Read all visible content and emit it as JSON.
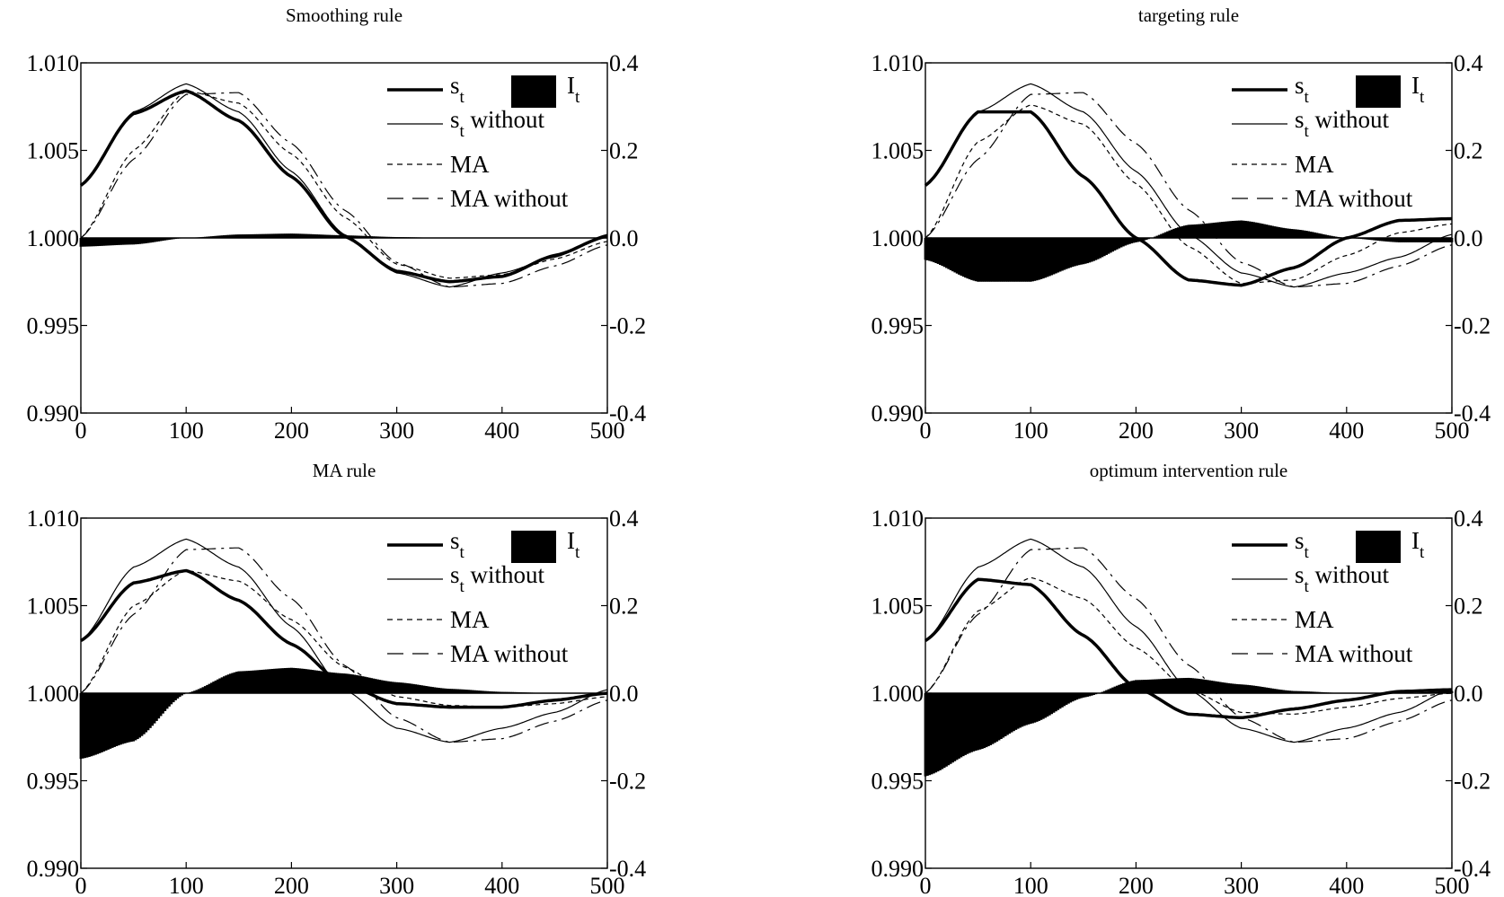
{
  "chart_data": [
    {
      "type": "line",
      "title": "Smoothing rule",
      "xlim": [
        0,
        500
      ],
      "ylim": [
        0.99,
        1.01
      ],
      "y2lim": [
        -0.4,
        0.4
      ],
      "x_ticks": [
        "0",
        "100",
        "200",
        "300",
        "400",
        "500"
      ],
      "y_ticks": [
        "1.010",
        "1.005",
        "1.000",
        "0.995",
        "0.990"
      ],
      "y2_ticks": [
        "0.4",
        "0.2",
        "0.0",
        "-0.2",
        "-0.4"
      ],
      "legend": {
        "s": "s",
        "s_sub": "t",
        "s_without": " without",
        "ma": "MA",
        "ma_without": "MA without",
        "i": "I",
        "i_sub": "t"
      },
      "legend_position": "top-right",
      "x": [
        0,
        50,
        100,
        150,
        200,
        250,
        300,
        350,
        400,
        450,
        500
      ],
      "series": [
        {
          "key": "s_t",
          "axis": "left",
          "style": "thick",
          "values": [
            1.003,
            1.0071,
            1.0084,
            1.0067,
            1.0035,
            1.0001,
            0.9981,
            0.9975,
            0.9978,
            0.999,
            1.0001
          ]
        },
        {
          "key": "s_t_without",
          "axis": "left",
          "style": "thin",
          "values": [
            1.003,
            1.0072,
            1.0088,
            1.0072,
            1.0038,
            1.0002,
            0.998,
            0.9972,
            0.998,
            0.9989,
            1.0002
          ]
        },
        {
          "key": "MA",
          "axis": "left",
          "style": "dashed",
          "values": [
            1.0,
            1.005,
            1.0084,
            1.0077,
            1.0048,
            1.0012,
            0.9985,
            0.9977,
            0.9979,
            0.9988,
            0.9998
          ]
        },
        {
          "key": "MA_without",
          "axis": "left",
          "style": "longdash",
          "values": [
            1.0,
            1.0045,
            1.0082,
            1.0083,
            1.0054,
            1.0016,
            0.9986,
            0.9972,
            0.9974,
            0.9984,
            0.9996
          ]
        },
        {
          "key": "I_t",
          "axis": "right",
          "style": "fill",
          "values": [
            -0.02,
            -0.015,
            0.0,
            0.008,
            0.01,
            0.006,
            0.002,
            0.0,
            0.0,
            0.0,
            0.0
          ]
        }
      ]
    },
    {
      "type": "line",
      "title": "targeting rule",
      "xlim": [
        0,
        500
      ],
      "ylim": [
        0.99,
        1.01
      ],
      "y2lim": [
        -0.4,
        0.4
      ],
      "x_ticks": [
        "0",
        "100",
        "200",
        "300",
        "400",
        "500"
      ],
      "y_ticks": [
        "1.010",
        "1.005",
        "1.000",
        "0.995",
        "0.990"
      ],
      "y2_ticks": [
        "0.4",
        "0.2",
        "0.0",
        "-0.2",
        "-0.4"
      ],
      "legend": {
        "s": "s",
        "s_sub": "t",
        "s_without": " without",
        "ma": "MA",
        "ma_without": "MA without",
        "i": "I",
        "i_sub": "t"
      },
      "legend_position": "top-right",
      "x": [
        0,
        50,
        100,
        150,
        200,
        250,
        300,
        350,
        400,
        450,
        500
      ],
      "series": [
        {
          "key": "s_t",
          "axis": "left",
          "style": "thick",
          "values": [
            1.003,
            1.0072,
            1.0072,
            1.0035,
            1.0,
            0.9976,
            0.9973,
            0.9983,
            1.0,
            1.001,
            1.0011
          ]
        },
        {
          "key": "s_t_without",
          "axis": "left",
          "style": "thin",
          "values": [
            1.003,
            1.0072,
            1.0088,
            1.0072,
            1.0038,
            1.0002,
            0.998,
            0.9972,
            0.998,
            0.9989,
            1.0002
          ]
        },
        {
          "key": "MA",
          "axis": "left",
          "style": "dashed",
          "values": [
            1.0,
            1.0055,
            1.0076,
            1.0065,
            1.0031,
            0.9995,
            0.9974,
            0.9976,
            0.999,
            1.0003,
            1.0008
          ]
        },
        {
          "key": "MA_without",
          "axis": "left",
          "style": "longdash",
          "values": [
            1.0,
            1.0045,
            1.0082,
            1.0083,
            1.0054,
            1.0016,
            0.9986,
            0.9972,
            0.9974,
            0.9984,
            0.9996
          ]
        },
        {
          "key": "I_t",
          "axis": "right",
          "style": "fill",
          "values": [
            -0.05,
            -0.1,
            -0.1,
            -0.06,
            -0.01,
            0.03,
            0.04,
            0.02,
            0.0,
            -0.01,
            -0.01
          ]
        }
      ]
    },
    {
      "type": "line",
      "title": "MA rule",
      "xlim": [
        0,
        500
      ],
      "ylim": [
        0.99,
        1.01
      ],
      "y2lim": [
        -0.4,
        0.4
      ],
      "x_ticks": [
        "0",
        "100",
        "200",
        "300",
        "400",
        "500"
      ],
      "y_ticks": [
        "1.010",
        "1.005",
        "1.000",
        "0.995",
        "0.990"
      ],
      "y2_ticks": [
        "0.4",
        "0.2",
        "0.0",
        "-0.2",
        "-0.4"
      ],
      "legend": {
        "s": "s",
        "s_sub": "t",
        "s_without": " without",
        "ma": "MA",
        "ma_without": "MA without",
        "i": "I",
        "i_sub": "t"
      },
      "legend_position": "top-right",
      "x": [
        0,
        50,
        100,
        150,
        200,
        250,
        300,
        350,
        400,
        450,
        500
      ],
      "series": [
        {
          "key": "s_t",
          "axis": "left",
          "style": "thick",
          "values": [
            1.003,
            1.0063,
            1.007,
            1.0053,
            1.0028,
            1.0005,
            0.9994,
            0.9992,
            0.9992,
            0.9996,
            1.0
          ]
        },
        {
          "key": "s_t_without",
          "axis": "left",
          "style": "thin",
          "values": [
            1.003,
            1.0072,
            1.0088,
            1.0072,
            1.0038,
            1.0002,
            0.998,
            0.9972,
            0.998,
            0.9989,
            1.0002
          ]
        },
        {
          "key": "MA",
          "axis": "left",
          "style": "dashed",
          "values": [
            1.0,
            1.005,
            1.007,
            1.0064,
            1.0042,
            1.0015,
            0.9998,
            0.9993,
            0.9992,
            0.9994,
            0.9998
          ]
        },
        {
          "key": "MA_without",
          "axis": "left",
          "style": "longdash",
          "values": [
            1.0,
            1.0045,
            1.0082,
            1.0083,
            1.0054,
            1.0016,
            0.9986,
            0.9972,
            0.9974,
            0.9984,
            0.9996
          ]
        },
        {
          "key": "I_t",
          "axis": "right",
          "style": "fill",
          "values": [
            -0.15,
            -0.11,
            0.0,
            0.05,
            0.058,
            0.045,
            0.025,
            0.01,
            0.003,
            0.0,
            0.0
          ]
        }
      ]
    },
    {
      "type": "line",
      "title": "optimum intervention rule",
      "xlim": [
        0,
        500
      ],
      "ylim": [
        0.99,
        1.01
      ],
      "y2lim": [
        -0.4,
        0.4
      ],
      "x_ticks": [
        "0",
        "100",
        "200",
        "300",
        "400",
        "500"
      ],
      "y_ticks": [
        "1.010",
        "1.005",
        "1.000",
        "0.995",
        "0.990"
      ],
      "y2_ticks": [
        "0.4",
        "0.2",
        "0.0",
        "-0.2",
        "-0.4"
      ],
      "legend": {
        "s": "s",
        "s_sub": "t",
        "s_without": " without",
        "ma": "MA",
        "ma_without": "MA without",
        "i": "I",
        "i_sub": "t"
      },
      "legend_position": "top-right",
      "x": [
        0,
        50,
        100,
        150,
        200,
        250,
        300,
        350,
        400,
        450,
        500
      ],
      "series": [
        {
          "key": "s_t",
          "axis": "left",
          "style": "thick",
          "values": [
            1.003,
            1.0065,
            1.0062,
            1.0033,
            1.0003,
            0.9988,
            0.9986,
            0.9991,
            0.9996,
            1.0001,
            1.0002
          ]
        },
        {
          "key": "s_t_without",
          "axis": "left",
          "style": "thin",
          "values": [
            1.003,
            1.0072,
            1.0088,
            1.0072,
            1.0038,
            1.0002,
            0.998,
            0.9972,
            0.998,
            0.9989,
            1.0002
          ]
        },
        {
          "key": "MA",
          "axis": "left",
          "style": "dashed",
          "values": [
            1.0,
            1.0047,
            1.0066,
            1.0054,
            1.0026,
            1.0002,
            0.9989,
            0.9988,
            0.9992,
            0.9997,
            1.0
          ]
        },
        {
          "key": "MA_without",
          "axis": "left",
          "style": "longdash",
          "values": [
            1.0,
            1.0045,
            1.0082,
            1.0083,
            1.0054,
            1.0016,
            0.9986,
            0.9972,
            0.9974,
            0.9984,
            0.9996
          ]
        },
        {
          "key": "I_t",
          "axis": "right",
          "style": "fill",
          "values": [
            -0.19,
            -0.13,
            -0.07,
            -0.01,
            0.03,
            0.035,
            0.02,
            0.005,
            0.0,
            0.0,
            0.005
          ]
        }
      ]
    }
  ]
}
